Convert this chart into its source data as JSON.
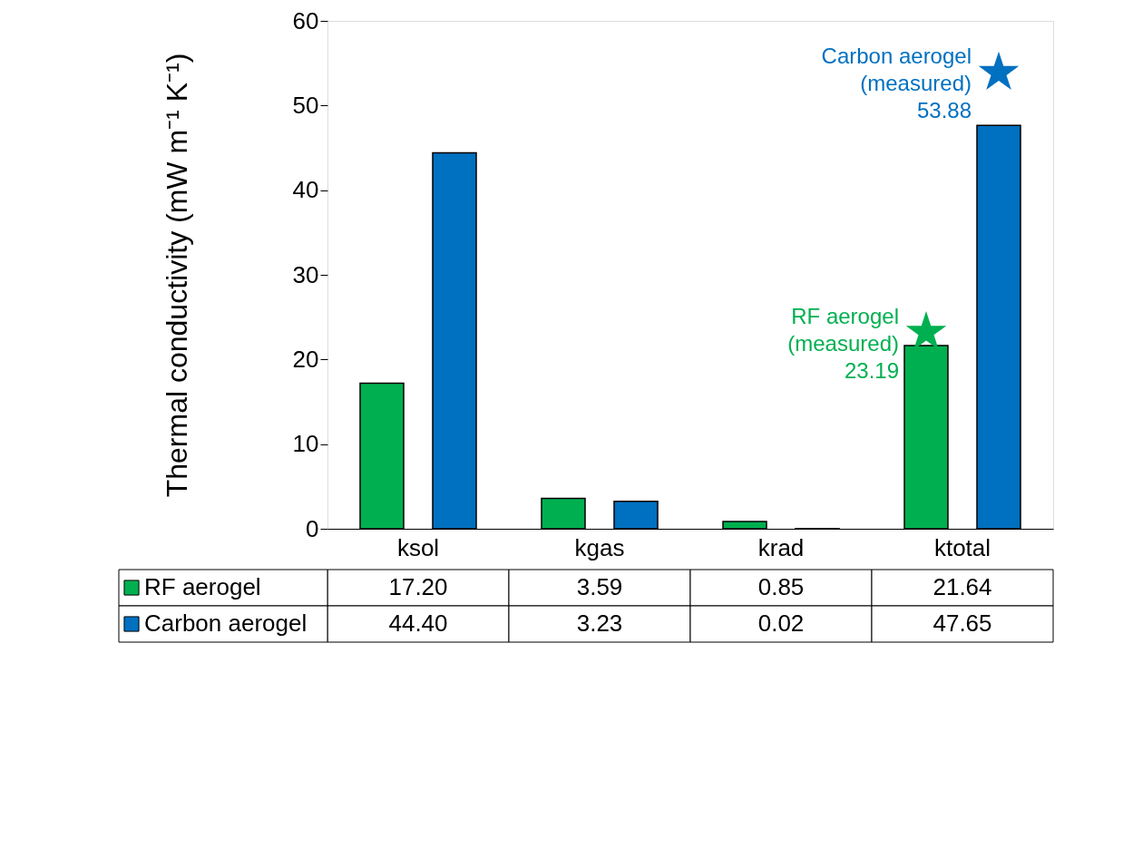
{
  "chart_data": {
    "type": "bar",
    "ylabel": "Thermal conductivity (mW m⁻¹ K⁻¹)",
    "categories": [
      "ksol",
      "kgas",
      "krad",
      "ktotal"
    ],
    "series": [
      {
        "name": "RF aerogel",
        "color": "#00b050",
        "values": [
          17.2,
          3.59,
          0.85,
          21.64
        ],
        "value_labels": [
          "17.20",
          "3.59",
          "0.85",
          "21.64"
        ]
      },
      {
        "name": "Carbon aerogel",
        "color": "#0070c0",
        "values": [
          44.4,
          3.23,
          0.02,
          47.65
        ],
        "value_labels": [
          "44.40",
          "3.23",
          "0.02",
          "47.65"
        ]
      },
      {
        "type": "scatter",
        "marker": "star",
        "color": "#00b050",
        "x": [
          "ktotal"
        ],
        "values": [
          23.19
        ]
      },
      {
        "type": "scatter",
        "marker": "star",
        "color": "#0070c0",
        "x": [
          "ktotal"
        ],
        "values": [
          53.88
        ]
      }
    ],
    "annotations": [
      "RF aerogel\n(measured)\n23.19",
      "Carbon aerogel\n(measured)\n53.88"
    ],
    "ylim": [
      0,
      60
    ],
    "yticks": [
      0,
      10,
      20,
      30,
      40,
      50,
      60
    ],
    "grid": false,
    "legend": "bottom"
  }
}
